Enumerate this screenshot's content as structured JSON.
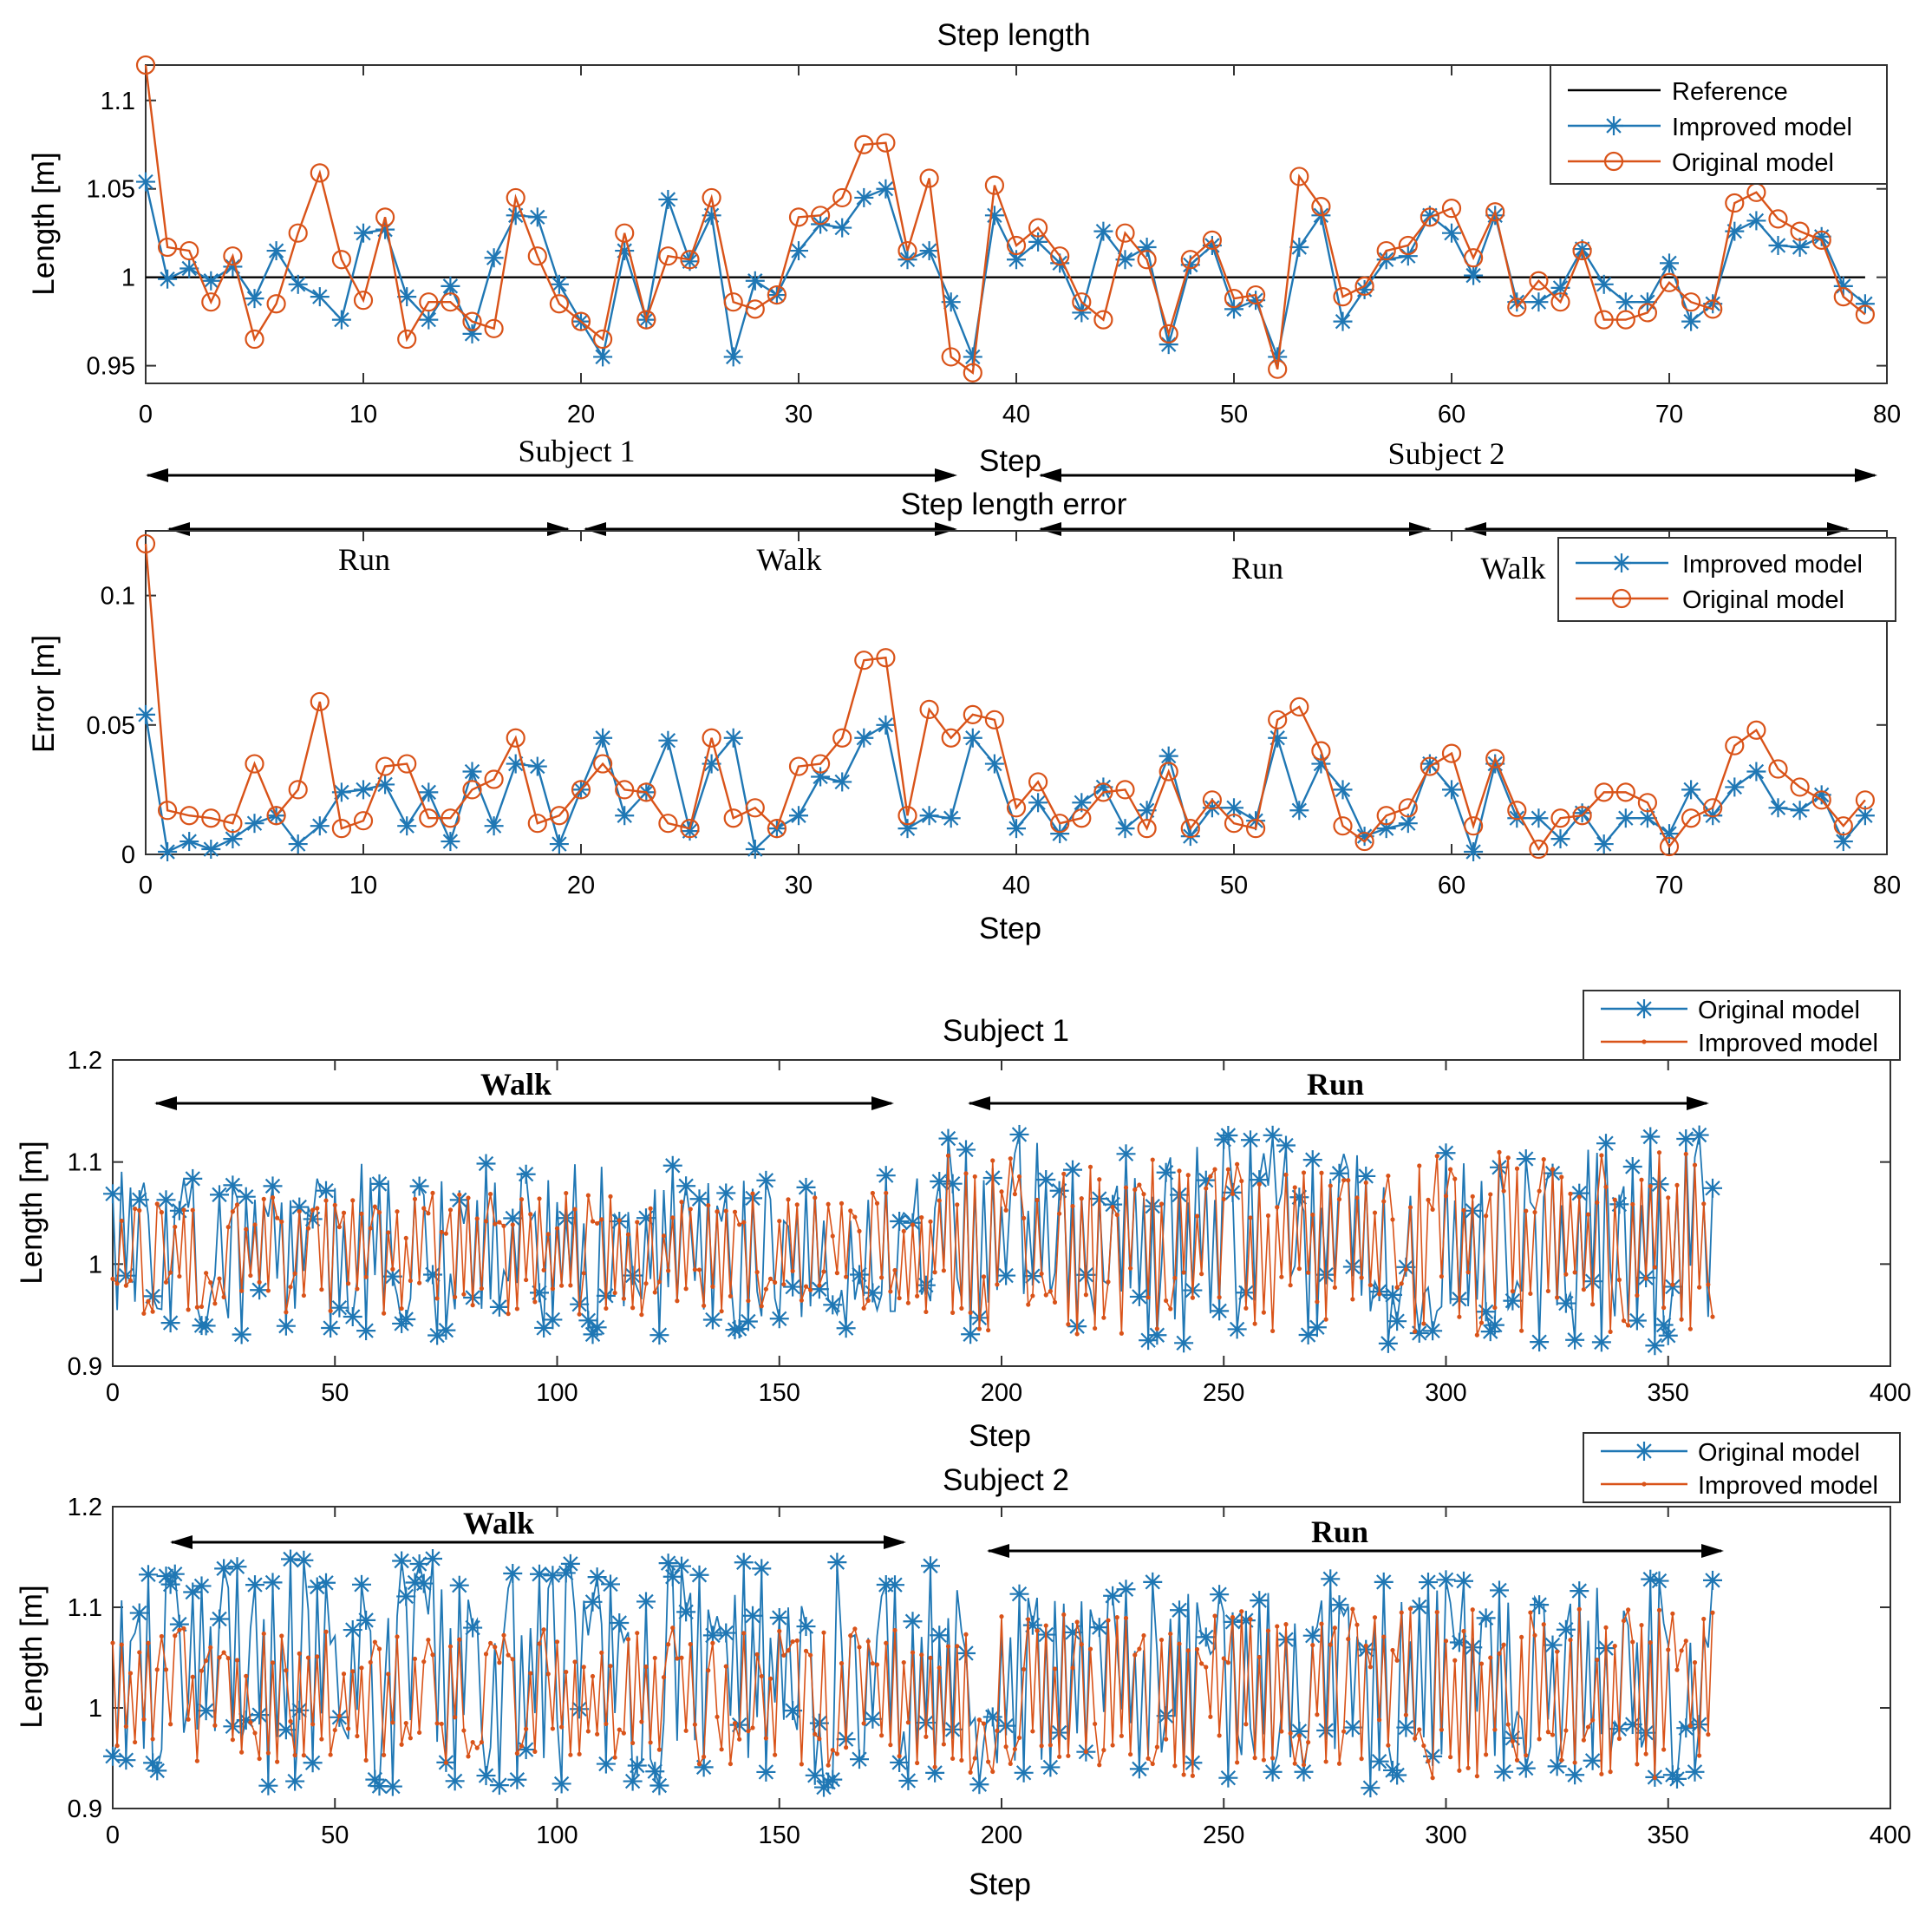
{
  "colors": {
    "blue": "#1f77b4",
    "orange": "#d95319",
    "black": "#000000",
    "axis": "#333333"
  },
  "chart_data": [
    {
      "type": "line",
      "title": "Step length",
      "xlabel": "Step",
      "ylabel": "Length [m]",
      "xlim": [
        0,
        80
      ],
      "ylim": [
        0.94,
        1.12
      ],
      "xticks": [
        "0",
        "10",
        "20",
        "30",
        "40",
        "50",
        "60",
        "70",
        "80"
      ],
      "yticks": [
        "0.95",
        "1",
        "1.05",
        "1.1"
      ],
      "legend_position": "top-right",
      "x": [
        0,
        1,
        2,
        3,
        4,
        5,
        6,
        7,
        8,
        9,
        10,
        11,
        12,
        13,
        14,
        15,
        16,
        17,
        18,
        19,
        20,
        21,
        22,
        23,
        24,
        25,
        26,
        27,
        28,
        29,
        30,
        31,
        32,
        33,
        34,
        35,
        36,
        37,
        38,
        39,
        40,
        41,
        42,
        43,
        44,
        45,
        46,
        47,
        48,
        49,
        50,
        51,
        52,
        53,
        54,
        55,
        56,
        57,
        58,
        59,
        60,
        61,
        62,
        63,
        64,
        65,
        66,
        67,
        68,
        69,
        70,
        71,
        72,
        73,
        74,
        75,
        76,
        77,
        78,
        79
      ],
      "series": [
        {
          "name": "Reference",
          "color": "#000000",
          "marker": "none",
          "values": [
            1,
            1,
            1,
            1,
            1,
            1,
            1,
            1,
            1,
            1,
            1,
            1,
            1,
            1,
            1,
            1,
            1,
            1,
            1,
            1,
            1,
            1,
            1,
            1,
            1,
            1,
            1,
            1,
            1,
            1,
            1,
            1,
            1,
            1,
            1,
            1,
            1,
            1,
            1,
            1,
            1,
            1,
            1,
            1,
            1,
            1,
            1,
            1,
            1,
            1,
            1,
            1,
            1,
            1,
            1,
            1,
            1,
            1,
            1,
            1,
            1,
            1,
            1,
            1,
            1,
            1,
            1,
            1,
            1,
            1,
            1,
            1,
            1,
            1,
            1,
            1,
            1,
            1,
            1,
            1
          ]
        },
        {
          "name": "Improved model",
          "color": "#1f77b4",
          "marker": "star",
          "values": [
            1.054,
            0.999,
            1.005,
            0.998,
            1.006,
            0.988,
            1.015,
            0.996,
            0.989,
            0.976,
            1.025,
            1.027,
            0.989,
            0.976,
            0.995,
            0.968,
            1.011,
            1.035,
            1.034,
            0.996,
            0.975,
            0.955,
            1.015,
            0.976,
            1.044,
            1.009,
            1.035,
            0.955,
            0.998,
            0.99,
            1.015,
            1.03,
            1.028,
            1.045,
            1.05,
            1.01,
            1.015,
            0.986,
            0.955,
            1.035,
            1.01,
            1.02,
            1.008,
            0.98,
            1.026,
            1.01,
            1.017,
            0.962,
            1.007,
            1.018,
            0.982,
            0.987,
            0.955,
            1.017,
            1.035,
            0.975,
            0.993,
            1.01,
            1.012,
            1.035,
            1.025,
            1.001,
            1.035,
            0.986,
            0.986,
            0.994,
            1.016,
            0.996,
            0.986,
            0.986,
            1.008,
            0.975,
            0.985,
            1.026,
            1.032,
            1.018,
            1.017,
            1.023,
            0.995,
            0.985
          ]
        },
        {
          "name": "Original model",
          "color": "#d95319",
          "marker": "circle",
          "values": [
            1.12,
            1.017,
            1.015,
            0.986,
            1.012,
            0.965,
            0.985,
            1.025,
            1.059,
            1.01,
            0.987,
            1.034,
            0.965,
            0.986,
            0.986,
            0.975,
            0.971,
            1.045,
            1.012,
            0.985,
            0.975,
            0.965,
            1.025,
            0.976,
            1.012,
            1.01,
            1.045,
            0.986,
            0.982,
            0.99,
            1.034,
            1.035,
            1.045,
            1.075,
            1.076,
            1.015,
            1.056,
            0.955,
            0.946,
            1.052,
            1.018,
            1.028,
            1.012,
            0.986,
            0.976,
            1.025,
            1.01,
            0.968,
            1.01,
            1.021,
            0.988,
            0.99,
            0.948,
            1.057,
            1.04,
            0.989,
            0.995,
            1.015,
            1.018,
            1.034,
            1.039,
            1.011,
            1.037,
            0.983,
            0.998,
            0.986,
            1.015,
            0.976,
            0.976,
            0.98,
            0.997,
            0.986,
            0.982,
            1.042,
            1.048,
            1.033,
            1.026,
            1.021,
            0.989,
            0.979
          ]
        }
      ],
      "annotations": [
        {
          "text": "Subject 1",
          "span": [
            0,
            38
          ]
        },
        {
          "text": "Subject 2",
          "span": [
            41.5,
            80
          ]
        },
        {
          "text": "Run",
          "span": [
            1,
            20
          ]
        },
        {
          "text": "Walk",
          "span": [
            20.5,
            38
          ]
        },
        {
          "text": "Run",
          "span": [
            41.5,
            60
          ]
        },
        {
          "text": "Walk",
          "span": [
            61.5,
            79
          ]
        }
      ]
    },
    {
      "type": "line",
      "title": "Step length error",
      "xlabel": "Step",
      "ylabel": "Error [m]",
      "xlim": [
        0,
        80
      ],
      "ylim": [
        0,
        0.125
      ],
      "xticks": [
        "0",
        "10",
        "20",
        "30",
        "40",
        "50",
        "60",
        "70",
        "80"
      ],
      "yticks": [
        "0",
        "0.05",
        "0.1"
      ],
      "legend_position": "top-right",
      "x": [
        0,
        1,
        2,
        3,
        4,
        5,
        6,
        7,
        8,
        9,
        10,
        11,
        12,
        13,
        14,
        15,
        16,
        17,
        18,
        19,
        20,
        21,
        22,
        23,
        24,
        25,
        26,
        27,
        28,
        29,
        30,
        31,
        32,
        33,
        34,
        35,
        36,
        37,
        38,
        39,
        40,
        41,
        42,
        43,
        44,
        45,
        46,
        47,
        48,
        49,
        50,
        51,
        52,
        53,
        54,
        55,
        56,
        57,
        58,
        59,
        60,
        61,
        62,
        63,
        64,
        65,
        66,
        67,
        68,
        69,
        70,
        71,
        72,
        73,
        74,
        75,
        76,
        77,
        78,
        79
      ],
      "series": [
        {
          "name": "Improved model",
          "color": "#1f77b4",
          "marker": "star",
          "values": [
            0.054,
            0.001,
            0.005,
            0.002,
            0.006,
            0.012,
            0.015,
            0.004,
            0.011,
            0.024,
            0.025,
            0.027,
            0.011,
            0.024,
            0.005,
            0.032,
            0.011,
            0.035,
            0.034,
            0.004,
            0.025,
            0.045,
            0.015,
            0.024,
            0.044,
            0.009,
            0.035,
            0.045,
            0.002,
            0.01,
            0.015,
            0.03,
            0.028,
            0.045,
            0.05,
            0.01,
            0.015,
            0.014,
            0.045,
            0.035,
            0.01,
            0.02,
            0.008,
            0.02,
            0.026,
            0.01,
            0.017,
            0.038,
            0.007,
            0.018,
            0.018,
            0.013,
            0.045,
            0.017,
            0.035,
            0.025,
            0.007,
            0.01,
            0.012,
            0.035,
            0.025,
            0.001,
            0.035,
            0.014,
            0.014,
            0.006,
            0.016,
            0.004,
            0.014,
            0.014,
            0.008,
            0.025,
            0.015,
            0.026,
            0.032,
            0.018,
            0.017,
            0.023,
            0.005,
            0.015
          ]
        },
        {
          "name": "Original model",
          "color": "#d95319",
          "marker": "circle",
          "values": [
            0.12,
            0.017,
            0.015,
            0.014,
            0.012,
            0.035,
            0.015,
            0.025,
            0.059,
            0.01,
            0.013,
            0.034,
            0.035,
            0.014,
            0.014,
            0.025,
            0.029,
            0.045,
            0.012,
            0.015,
            0.025,
            0.035,
            0.025,
            0.024,
            0.012,
            0.01,
            0.045,
            0.014,
            0.018,
            0.01,
            0.034,
            0.035,
            0.045,
            0.075,
            0.076,
            0.015,
            0.056,
            0.045,
            0.054,
            0.052,
            0.018,
            0.028,
            0.012,
            0.014,
            0.024,
            0.025,
            0.01,
            0.032,
            0.01,
            0.021,
            0.012,
            0.01,
            0.052,
            0.057,
            0.04,
            0.011,
            0.005,
            0.015,
            0.018,
            0.034,
            0.039,
            0.011,
            0.037,
            0.017,
            0.002,
            0.014,
            0.015,
            0.024,
            0.024,
            0.02,
            0.003,
            0.014,
            0.018,
            0.042,
            0.048,
            0.033,
            0.026,
            0.021,
            0.011,
            0.021
          ]
        }
      ]
    },
    {
      "type": "line",
      "title": "Subject 1",
      "xlabel": "Step",
      "ylabel": "Length [m]",
      "xlim": [
        0,
        400
      ],
      "ylim": [
        0.9,
        1.2
      ],
      "xticks": [
        "0",
        "50",
        "100",
        "150",
        "200",
        "250",
        "300",
        "350",
        "400"
      ],
      "yticks": [
        "0.9",
        "1",
        "1.1",
        "1.2"
      ],
      "legend_position": "top-right",
      "x_start": 0,
      "x_end": 360,
      "seeds": [
        11,
        29
      ],
      "segments": [
        {
          "name": "Walk",
          "from": 0,
          "to": 185,
          "blue_lo": 0.93,
          "blue_hi": 1.1,
          "orange_lo": 0.95,
          "orange_hi": 1.07
        },
        {
          "name": "Run",
          "from": 185,
          "to": 360,
          "blue_lo": 0.92,
          "blue_hi": 1.13,
          "orange_lo": 0.93,
          "orange_hi": 1.11
        }
      ],
      "series": [
        {
          "name": "Original model",
          "color": "#1f77b4",
          "marker": "star",
          "values": "dense series of about 360 step lengths oscillating between 0.92 and 1.13 m (walk 0.93-1.10 m, run 0.92-1.13 m)"
        },
        {
          "name": "Improved model",
          "color": "#d95319",
          "marker": "dot",
          "values": "dense series of about 360 step lengths oscillating between 0.93 and 1.11 m (walk 0.95-1.07 m, run 0.93-1.11 m)"
        }
      ],
      "annotations": [
        {
          "text": "Walk",
          "span": [
            10,
            175
          ]
        },
        {
          "text": "Run",
          "span": [
            192,
            358
          ]
        }
      ]
    },
    {
      "type": "line",
      "title": "Subject 2",
      "xlabel": "Step",
      "ylabel": "Length [m]",
      "xlim": [
        0,
        400
      ],
      "ylim": [
        0.9,
        1.2
      ],
      "xticks": [
        "0",
        "50",
        "100",
        "150",
        "200",
        "250",
        "300",
        "350",
        "400"
      ],
      "yticks": [
        "0.9",
        "1",
        "1.1",
        "1.2"
      ],
      "legend_position": "top-right",
      "x_start": 0,
      "x_end": 360,
      "seeds": [
        47,
        83
      ],
      "segments": [
        {
          "name": "Walk",
          "from": 0,
          "to": 190,
          "blue_lo": 0.92,
          "blue_hi": 1.15,
          "orange_lo": 0.94,
          "orange_hi": 1.08
        },
        {
          "name": "Run",
          "from": 190,
          "to": 360,
          "blue_lo": 0.92,
          "blue_hi": 1.13,
          "orange_lo": 0.93,
          "orange_hi": 1.1
        }
      ],
      "series": [
        {
          "name": "Original model",
          "color": "#1f77b4",
          "marker": "star",
          "values": "dense series of about 360 step lengths oscillating between 0.92 and 1.15 m (walk 0.92-1.15 m, run 0.92-1.13 m)"
        },
        {
          "name": "Improved model",
          "color": "#d95319",
          "marker": "dot",
          "values": "dense series of about 360 step lengths oscillating between 0.93 and 1.10 m (walk 0.94-1.08 m, run 0.93-1.10 m)"
        }
      ],
      "annotations": [
        {
          "text": "Walk",
          "span": [
            13,
            178
          ]
        },
        {
          "text": "Run",
          "span": [
            196,
            361
          ]
        }
      ]
    }
  ]
}
